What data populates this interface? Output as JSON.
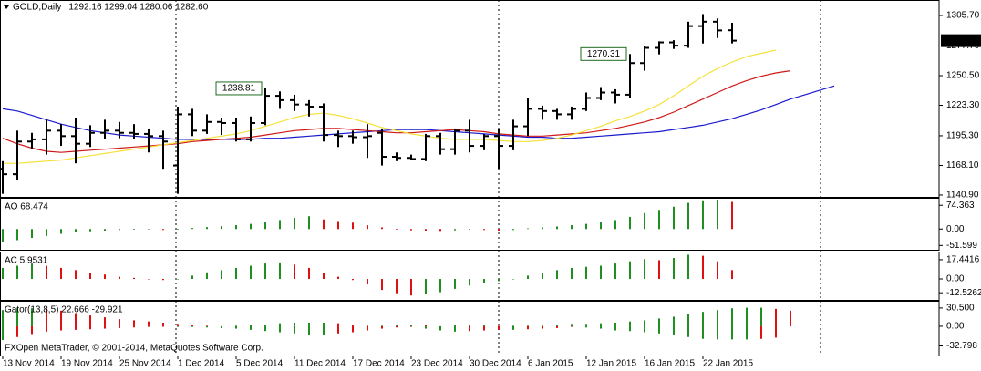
{
  "chart_data": [
    {
      "type": "ohlc",
      "title": "GOLD,Daily",
      "info": "1292.16 1299.04 1280.06 1282.60",
      "color": "#000000",
      "ylim": [
        1139.2,
        1319.1
      ],
      "yticks": [
        {
          "value": 1305.7,
          "label": "1305.70"
        },
        {
          "value": 1277.7,
          "label": "1277.70"
        },
        {
          "value": 1250.5,
          "label": "1250.50"
        },
        {
          "value": 1223.3,
          "label": "1223.30"
        },
        {
          "value": 1195.3,
          "label": "1195.30"
        },
        {
          "value": 1168.1,
          "label": "1168.10"
        },
        {
          "value": 1140.9,
          "label": "1140.90"
        }
      ],
      "open": [
        1165,
        1160,
        1190,
        1192,
        1200,
        1195,
        1188,
        1198,
        1200,
        1198,
        1197,
        1195,
        1168,
        1215,
        1200,
        1208,
        1207,
        1192,
        1207,
        1232,
        1228,
        1224,
        1222,
        1196,
        1195,
        1194,
        1198,
        1176,
        1175,
        1174,
        1195,
        1183,
        1200,
        1186,
        1195,
        1186,
        1204,
        1220,
        1218,
        1215,
        1220,
        1230,
        1235,
        1233,
        1262,
        1276,
        1281,
        1278,
        1296,
        1300,
        1292.16,
        null,
        null,
        null,
        null,
        null,
        null,
        null
      ],
      "high": [
        1172,
        1200,
        1198,
        1210,
        1206,
        1212,
        1205,
        1210,
        1208,
        1206,
        1202,
        1200,
        1222,
        1220,
        1215,
        1212,
        1212,
        1213,
        1238.81,
        1236,
        1233,
        1228,
        1225,
        1200,
        1200,
        1206,
        1202,
        1180,
        1178,
        1197,
        1198,
        1202,
        1210,
        1197,
        1202,
        1210,
        1230,
        1223,
        1220,
        1222,
        1235,
        1240,
        1238,
        1270.31,
        1278,
        1282,
        1283,
        1300,
        1307,
        1303,
        1299.04,
        null,
        null,
        null,
        null,
        null,
        null,
        null
      ],
      "low": [
        1142,
        1155,
        1183,
        1178,
        1186,
        1170,
        1185,
        1192,
        1193,
        1192,
        1180,
        1165,
        1142,
        1195,
        1197,
        1196,
        1190,
        1190,
        1205,
        1220,
        1218,
        1213,
        1190,
        1185,
        1188,
        1175,
        1168,
        1172,
        1173,
        1172,
        1178,
        1178,
        1180,
        1182,
        1165,
        1182,
        1195,
        1210,
        1210,
        1210,
        1218,
        1228,
        1225,
        1230,
        1255,
        1270,
        1275,
        1276,
        1280,
        1285,
        1280.06,
        null,
        null,
        null,
        null,
        null,
        null,
        null
      ],
      "close": [
        1160,
        1190,
        1192,
        1200,
        1195,
        1188,
        1198,
        1200,
        1198,
        1197,
        1195,
        1190,
        1215,
        1200,
        1208,
        1207,
        1192,
        1207,
        1232,
        1228,
        1224,
        1222,
        1196,
        1195,
        1194,
        1195,
        1176,
        1175,
        1174,
        1195,
        1183,
        1200,
        1186,
        1195,
        1186,
        1204,
        1220,
        1218,
        1215,
        1220,
        1230,
        1235,
        1233,
        1262,
        1276,
        1281,
        1278,
        1296,
        1300,
        1292,
        1282.6,
        null,
        null,
        null,
        null,
        null,
        null,
        null
      ],
      "lines": [
        {
          "color": "#1a1acc",
          "values": [
            1220,
            1218,
            1214,
            1210,
            1206,
            1203,
            1200,
            1198,
            1196,
            1195,
            1194,
            1193,
            1192,
            1192,
            1192,
            1192,
            1192,
            1192,
            1193,
            1193,
            1194,
            1195,
            1196,
            1197,
            1198,
            1199,
            1200,
            1201,
            1201,
            1201,
            1200,
            1199,
            1198,
            1197,
            1196,
            1195,
            1194,
            1194,
            1193,
            1193,
            1194,
            1195,
            1196,
            1197,
            1198,
            1199,
            1201,
            1203,
            1205,
            1208,
            1211,
            1215,
            1219,
            1224,
            1229,
            1233,
            1237,
            1241
          ]
        },
        {
          "color": "#d01818",
          "values": [
            1193,
            1188,
            1184,
            1181,
            1180,
            1181,
            1182,
            1183,
            1184,
            1185,
            1186,
            1187,
            1188,
            1190,
            1191,
            1192,
            1193,
            1194,
            1196,
            1198,
            1200,
            1201,
            1202,
            1202,
            1201,
            1200,
            1199,
            1198,
            1198,
            1199,
            1200,
            1201,
            1200,
            1199,
            1197,
            1196,
            1195,
            1195,
            1196,
            1197,
            1198,
            1200,
            1202,
            1205,
            1208,
            1212,
            1217,
            1223,
            1229,
            1235,
            1241,
            1246,
            1250,
            1253,
            1255,
            null,
            null,
            null
          ]
        },
        {
          "color": "#f5e13a",
          "values": [
            1170,
            1170,
            1171,
            1172,
            1173,
            1175,
            1177,
            1179,
            1181,
            1183,
            1185,
            1187,
            1189,
            1191,
            1193,
            1195,
            1197,
            1200,
            1204,
            1208,
            1212,
            1215,
            1216,
            1214,
            1211,
            1207,
            1203,
            1200,
            1197,
            1195,
            1193,
            1192,
            1192,
            1192,
            1191,
            1190,
            1190,
            1191,
            1193,
            1196,
            1200,
            1204,
            1209,
            1213,
            1218,
            1224,
            1232,
            1241,
            1250,
            1257,
            1263,
            1268,
            1271,
            1274,
            null,
            null,
            null,
            null
          ]
        }
      ],
      "annotations": [
        {
          "value": 1238.81,
          "label": "1238.81",
          "color": "#1f6b1f"
        },
        {
          "value": 1270.31,
          "label": "1270.31",
          "color": "#1f6b1f"
        }
      ],
      "current_price": {
        "value": 1282.6,
        "label": "1282.60"
      }
    },
    {
      "type": "bar",
      "title": "AO 68.474",
      "up_color": "#1f8f1f",
      "down_color": "#e01010",
      "ylim": [
        -65,
        95
      ],
      "yticks": [
        {
          "value": 74.363,
          "label": "74.363"
        },
        {
          "value": 0,
          "label": "0.00"
        },
        {
          "value": -51.599,
          "label": "-51.599"
        }
      ],
      "values": [
        -40,
        -35,
        -28,
        -22,
        -15,
        -10,
        -7,
        -5,
        -3,
        -2,
        -1,
        -3,
        -2,
        3,
        6,
        9,
        12,
        16,
        22,
        28,
        35,
        40,
        30,
        25,
        20,
        12,
        5,
        -2,
        -4,
        -5,
        -6,
        -4,
        -2,
        -3,
        -5,
        -3,
        2,
        5,
        8,
        12,
        16,
        22,
        28,
        38,
        50,
        60,
        70,
        82,
        90,
        92,
        85,
        null,
        null,
        null,
        null,
        null,
        null,
        null
      ]
    },
    {
      "type": "bar",
      "title": "AC 5.9531",
      "up_color": "#1f8f1f",
      "down_color": "#e01010",
      "ylim": [
        -19,
        24
      ],
      "yticks": [
        {
          "value": 17.4416,
          "label": "17.4416"
        },
        {
          "value": 0,
          "label": "0.00"
        },
        {
          "value": -12.5262,
          "label": "-12.5262"
        }
      ],
      "values": [
        10,
        12,
        14,
        12,
        10,
        8,
        5,
        4,
        2,
        1,
        0,
        -1,
        0,
        3,
        6,
        8,
        10,
        12,
        14,
        15,
        13,
        10,
        5,
        2,
        -1,
        -5,
        -10,
        -13,
        -15,
        -14,
        -12,
        -9,
        -6,
        -4,
        -2,
        0,
        3,
        5,
        8,
        10,
        11,
        12,
        14,
        16,
        18,
        17,
        19,
        22,
        21,
        16,
        8,
        null,
        null,
        null,
        null,
        null,
        null,
        null
      ]
    },
    {
      "type": "gator",
      "title": "Gator(13,8,5) 22.666 -29.921",
      "up_color": "#1f8f1f",
      "down_color": "#e01010",
      "copyright": "FXOpen MetaTrader, © 2001-2014, MetaQuotes Software Corp.",
      "ylim": [
        -48.8,
        41
      ],
      "yticks": [
        {
          "value": 30.5,
          "label": "30.500"
        },
        {
          "value": 0,
          "label": "0.00"
        },
        {
          "value": -32.798,
          "label": "-32.798"
        }
      ],
      "categories": [
        "13 Nov 2014",
        null,
        null,
        null,
        "19 Nov 2014",
        null,
        null,
        null,
        "25 Nov 2014",
        null,
        null,
        null,
        "1 Dec 2014",
        null,
        null,
        null,
        "5 Dec 2014",
        null,
        null,
        null,
        "11 Dec 2014",
        null,
        null,
        null,
        "17 Dec 2014",
        null,
        null,
        null,
        "23 Dec 2014",
        null,
        null,
        null,
        "30 Dec 2014",
        null,
        null,
        null,
        "6 Jan 2015",
        null,
        null,
        null,
        "12 Jan 2015",
        null,
        null,
        null,
        "16 Jan 2015",
        null,
        null,
        null,
        "22 Jan 2015",
        null,
        null,
        null,
        null,
        null,
        null,
        null,
        null,
        null
      ],
      "series": [
        {
          "values": [
            27,
            30,
            30,
            29,
            26,
            22,
            18,
            15,
            12,
            10,
            8,
            6,
            4,
            2,
            1,
            0,
            1,
            2,
            3,
            5,
            6,
            6,
            6,
            5,
            3,
            1,
            1,
            3,
            3,
            2,
            0,
            2,
            2,
            2,
            1,
            1,
            1,
            1,
            3,
            4,
            4,
            5,
            6,
            8,
            10,
            13,
            16,
            20,
            24,
            27,
            30,
            31,
            31,
            29,
            26,
            null,
            null,
            null
          ]
        },
        {
          "values": [
            -23,
            -18,
            -13,
            -9,
            -7,
            -6,
            -5,
            -4,
            -3,
            -2,
            -1,
            0,
            -1,
            -1,
            -2,
            -3,
            -4,
            -6,
            -8,
            -10,
            -12,
            -14,
            -14,
            -12,
            -10,
            -7,
            -4,
            -2,
            -1,
            -4,
            -7,
            -9,
            -8,
            -7,
            -6,
            -6,
            -5,
            -4,
            -3,
            -1,
            -2,
            -4,
            -7,
            -8,
            -10,
            -12,
            -15,
            -18,
            -21,
            -22,
            -22,
            -22,
            -21,
            -19,
            null,
            null,
            null,
            null
          ]
        }
      ]
    }
  ]
}
